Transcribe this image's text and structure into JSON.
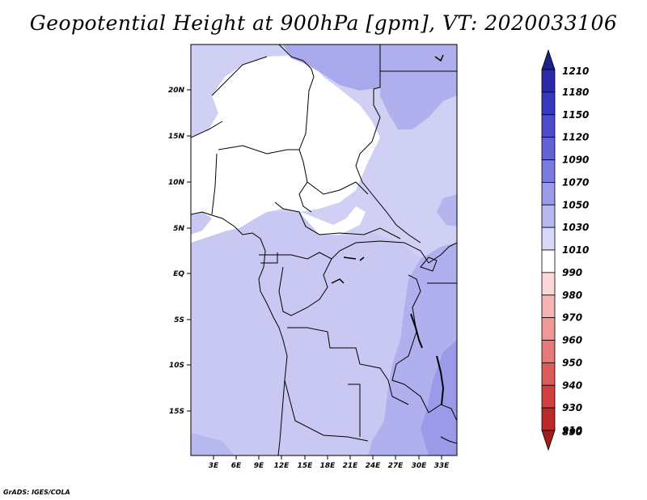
{
  "title": "Geopotential Height at 900hPa [gpm], VT: 2020033106",
  "credit": "GrADS: IGES/COLA",
  "map": {
    "lat_ticks": [
      "20N",
      "15N",
      "10N",
      "5N",
      "EQ",
      "5S",
      "10S",
      "15S"
    ],
    "lon_ticks": [
      "3E",
      "6E",
      "9E",
      "12E",
      "15E",
      "18E",
      "21E",
      "24E",
      "27E",
      "30E",
      "33E"
    ]
  },
  "colorbar": {
    "levels": [
      "1210",
      "1180",
      "1150",
      "1120",
      "1090",
      "1070",
      "1050",
      "1030",
      "1010",
      "990",
      "980",
      "970",
      "960",
      "950",
      "940",
      "930",
      "910",
      "890"
    ],
    "colors": [
      "#1f1f8c",
      "#2a2aa8",
      "#3838bf",
      "#4b4bcc",
      "#6262d6",
      "#7a7adf",
      "#9a9ae8",
      "#b8b8f0",
      "#d8d8f7",
      "#ffffff",
      "#fbd8d8",
      "#f5b5b5",
      "#ef9898",
      "#e67a7a",
      "#dc5c5c",
      "#d04040",
      "#bb2a2a",
      "#a01e1e"
    ]
  }
}
